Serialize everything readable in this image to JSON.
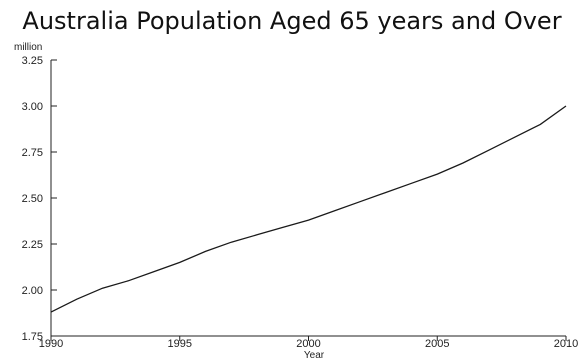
{
  "chart_data": {
    "type": "line",
    "title": "Australia Population Aged 65 years and Over",
    "ylabel": "million",
    "xlabel": "Year",
    "xlim": [
      1990,
      2010
    ],
    "ylim": [
      1.75,
      3.25
    ],
    "x_ticks": [
      1990,
      1995,
      2000,
      2005,
      2010
    ],
    "x_tick_labels": [
      "1990",
      "1995",
      "2000",
      "2005",
      "2010"
    ],
    "y_ticks": [
      1.75,
      2.0,
      2.25,
      2.5,
      2.75,
      3.0,
      3.25
    ],
    "y_tick_labels": [
      "1.75",
      "2.00",
      "2.25",
      "2.50",
      "2.75",
      "3.00",
      "3.25"
    ],
    "grid": false,
    "legend": "none",
    "series": [
      {
        "color": "#1a1a1a",
        "x": [
          1990,
          1991,
          1992,
          1993,
          1994,
          1995,
          1996,
          1997,
          1998,
          1999,
          2000,
          2001,
          2002,
          2003,
          2004,
          2005,
          2006,
          2007,
          2008,
          2009,
          2010
        ],
        "y": [
          1.88,
          1.95,
          2.01,
          2.05,
          2.1,
          2.15,
          2.21,
          2.26,
          2.3,
          2.34,
          2.38,
          2.43,
          2.48,
          2.53,
          2.58,
          2.63,
          2.69,
          2.76,
          2.83,
          2.9,
          3.0
        ]
      }
    ]
  }
}
